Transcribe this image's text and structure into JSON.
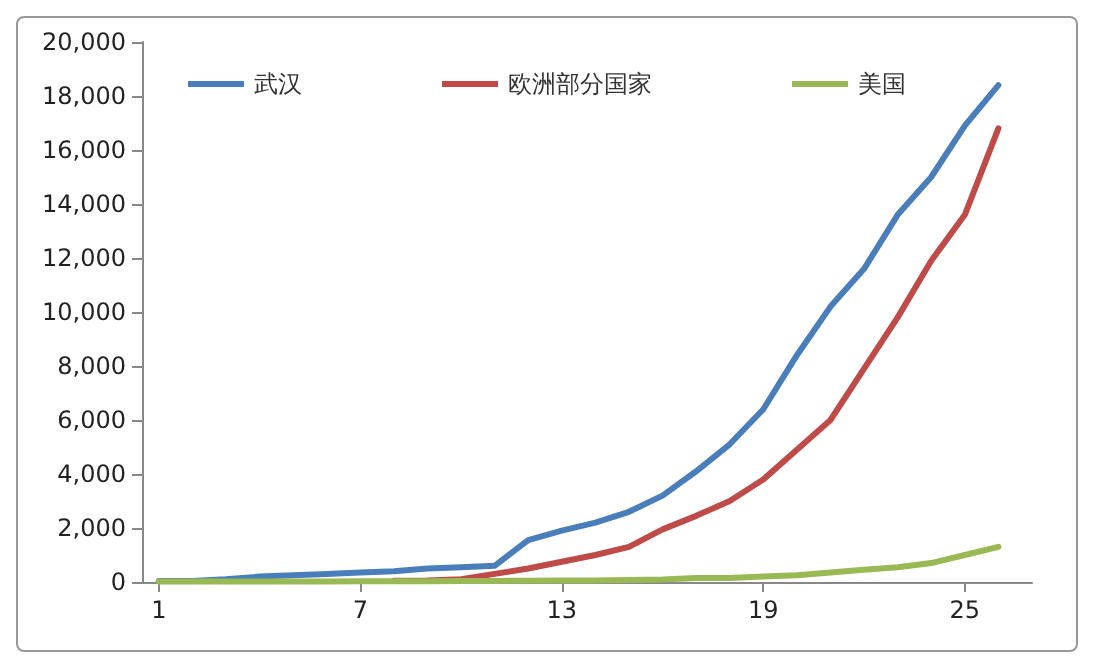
{
  "chart_data": {
    "type": "line",
    "x": [
      1,
      2,
      3,
      4,
      5,
      6,
      7,
      8,
      9,
      10,
      11,
      12,
      13,
      14,
      15,
      16,
      17,
      18,
      19,
      20,
      21,
      22,
      23,
      24,
      25,
      26
    ],
    "series": [
      {
        "name": "武汉",
        "color": "#4a7ebb",
        "values": [
          40,
          40,
          100,
          200,
          250,
          300,
          350,
          400,
          500,
          550,
          600,
          1550,
          1900,
          2200,
          2600,
          3200,
          4100,
          5100,
          6400,
          8400,
          10200,
          11600,
          13600,
          15000,
          16900,
          18400
        ]
      },
      {
        "name": "欧洲部分国家",
        "color": "#be4b48",
        "values": [
          null,
          null,
          null,
          null,
          null,
          null,
          null,
          50,
          60,
          100,
          300,
          500,
          750,
          1000,
          1300,
          1950,
          2450,
          3000,
          3800,
          4900,
          6000,
          7900,
          9800,
          11900,
          13600,
          16800
        ]
      },
      {
        "name": "美国",
        "color": "#98b954",
        "values": [
          20,
          20,
          20,
          20,
          20,
          20,
          30,
          30,
          30,
          40,
          40,
          50,
          60,
          60,
          70,
          90,
          150,
          150,
          200,
          250,
          350,
          450,
          550,
          700,
          1000,
          1300
        ]
      }
    ],
    "xlim": [
      0.5,
      27
    ],
    "xticks": [
      1,
      7,
      13,
      19,
      25
    ],
    "ylim": [
      0,
      20000
    ],
    "yticks": [
      0,
      {
        "value": 2000,
        "label": "2,000"
      },
      {
        "value": 4000,
        "label": "4,000"
      },
      {
        "value": 6000,
        "label": "6,000"
      },
      {
        "value": 8000,
        "label": "8,000"
      },
      {
        "value": 10000,
        "label": "10,000"
      },
      {
        "value": 12000,
        "label": "12,000"
      },
      {
        "value": 14000,
        "label": "14,000"
      },
      {
        "value": 16000,
        "label": "16,000"
      },
      {
        "value": 18000,
        "label": "18,000"
      },
      {
        "value": 20000,
        "label": "20,000"
      }
    ],
    "grid": false,
    "legend": "top",
    "marker": "none",
    "line_style": "solid"
  }
}
